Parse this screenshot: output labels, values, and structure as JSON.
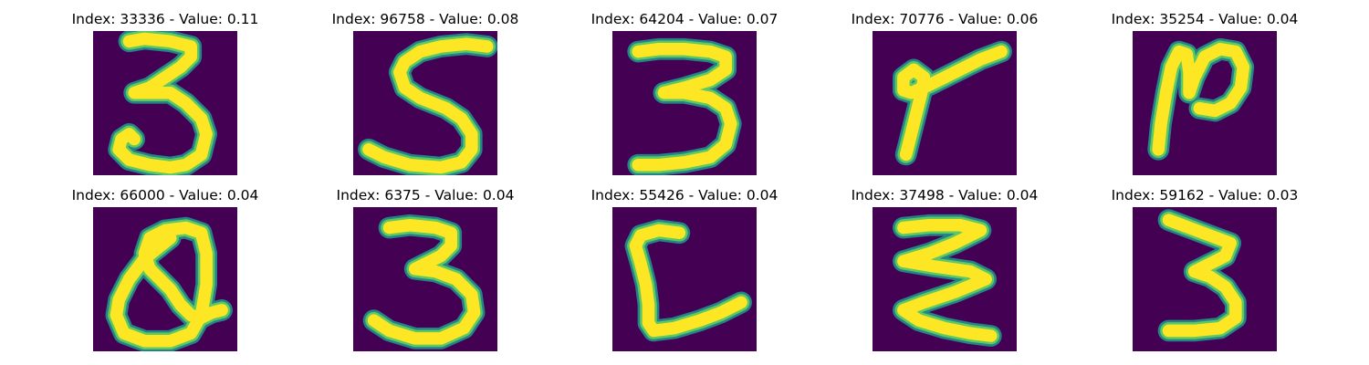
{
  "colors": {
    "background": "#440154",
    "edge": "#21918c",
    "mid": "#5ec962",
    "stroke": "#fde725"
  },
  "panels": [
    {
      "title": "Index: 33336 - Value: 0.11",
      "digit": "3"
    },
    {
      "title": "Index: 96758 - Value: 0.08",
      "digit": "5"
    },
    {
      "title": "Index: 64204 - Value: 0.07",
      "digit": "3"
    },
    {
      "title": "Index: 70776 - Value: 0.06",
      "digit": "7"
    },
    {
      "title": "Index: 35254 - Value: 0.04",
      "digit": "2"
    },
    {
      "title": "Index: 66000 - Value: 0.04",
      "digit": "2"
    },
    {
      "title": "Index: 6375 - Value: 0.04",
      "digit": "3"
    },
    {
      "title": "Index: 55426 - Value: 0.04",
      "digit": "6"
    },
    {
      "title": "Index: 37498 - Value: 0.04",
      "digit": "3"
    },
    {
      "title": "Index: 59162 - Value: 0.03",
      "digit": "3"
    }
  ]
}
